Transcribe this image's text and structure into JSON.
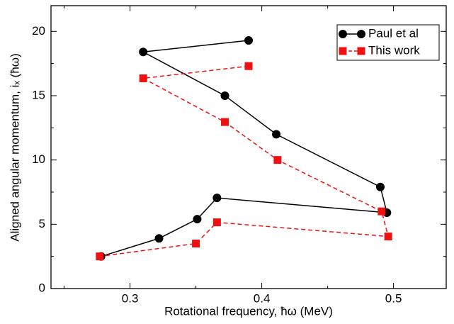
{
  "chart_data": {
    "type": "line",
    "x_label": "Rotational frequency, ħω (MeV)",
    "y_label": "Aligned angular momentum, iₓ (ħω)",
    "xlim": [
      0.24,
      0.54
    ],
    "xticks": [
      0.3,
      0.4,
      0.5
    ],
    "x_minor_ticks": [
      0.25,
      0.35,
      0.45
    ],
    "ylim": [
      0,
      22
    ],
    "yticks": [
      0,
      5,
      10,
      15,
      20
    ],
    "y_minor_ticks": [
      2.5,
      7.5,
      12.5,
      17.5
    ],
    "legend": "upper right",
    "series": [
      {
        "name": "Paul et al",
        "color": "#000000",
        "marker": "circle",
        "dash": false,
        "x": [
          0.39,
          0.31,
          0.372,
          0.411,
          0.49,
          0.495,
          0.366,
          0.351,
          0.322,
          0.278
        ],
        "values": [
          19.3,
          18.4,
          15.0,
          12.0,
          7.9,
          5.9,
          7.05,
          5.4,
          3.9,
          2.5
        ]
      },
      {
        "name": "This work",
        "color": "#ee1111",
        "marker": "square",
        "dash": true,
        "x": [
          0.39,
          0.31,
          0.372,
          0.412,
          0.491,
          0.496,
          0.366,
          0.35,
          0.277
        ],
        "values": [
          17.3,
          16.35,
          12.95,
          10.0,
          6.0,
          4.05,
          5.15,
          3.5,
          2.5
        ]
      }
    ]
  }
}
